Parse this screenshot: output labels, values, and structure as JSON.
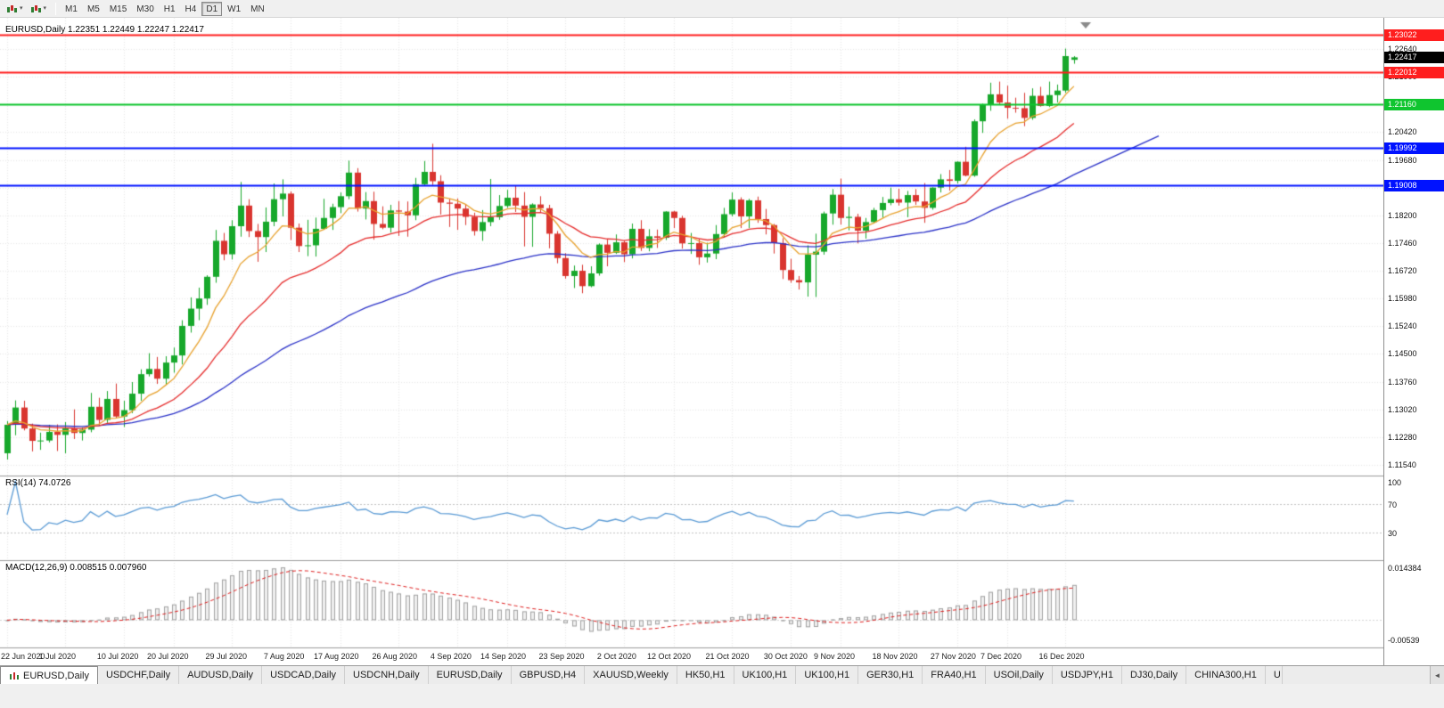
{
  "toolbar": {
    "icons": [
      {
        "name": "new-chart-button"
      },
      {
        "name": "chart-profiles-button"
      }
    ],
    "timeframes": [
      {
        "label": "M1",
        "active": false
      },
      {
        "label": "M5",
        "active": false
      },
      {
        "label": "M15",
        "active": false
      },
      {
        "label": "M30",
        "active": false
      },
      {
        "label": "H1",
        "active": false
      },
      {
        "label": "H4",
        "active": false
      },
      {
        "label": "D1",
        "active": true
      },
      {
        "label": "W1",
        "active": false
      },
      {
        "label": "MN",
        "active": false
      }
    ]
  },
  "chart": {
    "title": "EURUSD,Daily 1.22351 1.22449 1.22247 1.22417",
    "symbol": "EURUSD,Daily",
    "ohlc_display": {
      "open": "1.22351",
      "high": "1.22449",
      "low": "1.22247",
      "close": "1.22417"
    },
    "colors": {
      "bull": "#17a82b",
      "bear": "#d9352f",
      "ma_fast": "#e8a22e",
      "ma_mid": "#e62e2e",
      "ma_slow": "#2b32c8",
      "grid": "#e7e7e7",
      "separator": "#9b9b9b"
    },
    "current_price": {
      "label": "1.22417",
      "price": 1.22417,
      "bg": "#000000"
    },
    "hlines": [
      {
        "label": "1.23022",
        "price": 1.23022,
        "color": "#ff1e1e",
        "width": 2
      },
      {
        "label": "1.22012",
        "price": 1.22012,
        "color": "#ff1e1e",
        "width": 2
      },
      {
        "label": "1.21160",
        "price": 1.2116,
        "color": "#0fc52f",
        "width": 2
      },
      {
        "label": "1.19992",
        "price": 1.19992,
        "color": "#0012ff",
        "width": 2
      },
      {
        "label": "1.19008",
        "price": 1.19008,
        "color": "#0012ff",
        "width": 2
      }
    ],
    "trendline": {
      "color": "#2b32c8",
      "end_x": 1300,
      "end_price": 1.2032
    },
    "price_axis": {
      "labels": [
        "1.22640",
        "1.21900",
        "1.21160",
        "1.20420",
        "1.19680",
        "1.18940",
        "1.18200",
        "1.17460",
        "1.16720",
        "1.15980",
        "1.15240",
        "1.14500",
        "1.13760",
        "1.13020",
        "1.12280",
        "1.11540"
      ]
    },
    "x_ticks": [
      {
        "i": 0,
        "label": "22 Jun 2020"
      },
      {
        "i": 7,
        "label": "1 Jul 2020"
      },
      {
        "i": 14,
        "label": "10 Jul 2020"
      },
      {
        "i": 20,
        "label": "20 Jul 2020"
      },
      {
        "i": 27,
        "label": "29 Jul 2020"
      },
      {
        "i": 34,
        "label": "7 Aug 2020"
      },
      {
        "i": 40,
        "label": "17 Aug 2020"
      },
      {
        "i": 47,
        "label": "26 Aug 2020"
      },
      {
        "i": 54,
        "label": "4 Sep 2020"
      },
      {
        "i": 60,
        "label": "14 Sep 2020"
      },
      {
        "i": 67,
        "label": "23 Sep 2020"
      },
      {
        "i": 74,
        "label": "2 Oct 2020"
      },
      {
        "i": 80,
        "label": "12 Oct 2020"
      },
      {
        "i": 87,
        "label": "21 Oct 2020"
      },
      {
        "i": 94,
        "label": "30 Oct 2020"
      },
      {
        "i": 100,
        "label": "9 Nov 2020"
      },
      {
        "i": 107,
        "label": "18 Nov 2020"
      },
      {
        "i": 114,
        "label": "27 Nov 2020"
      },
      {
        "i": 120,
        "label": "7 Dec 2020"
      },
      {
        "i": 127,
        "label": "16 Dec 2020"
      }
    ],
    "moving_averages": [
      {
        "period": 55,
        "color": "#2b32c8"
      },
      {
        "period": 21,
        "color": "#e62e2e"
      },
      {
        "period": 8,
        "color": "#e8a22e"
      }
    ],
    "candles": [
      [
        1.1185,
        1.1271,
        1.1168,
        1.1261
      ],
      [
        1.1261,
        1.1326,
        1.1233,
        1.1307
      ],
      [
        1.1307,
        1.1325,
        1.1246,
        1.1251
      ],
      [
        1.1251,
        1.1264,
        1.119,
        1.1218
      ],
      [
        1.1218,
        1.124,
        1.1194,
        1.1219
      ],
      [
        1.1219,
        1.1261,
        1.1214,
        1.1242
      ],
      [
        1.1242,
        1.1262,
        1.1191,
        1.1234
      ],
      [
        1.1234,
        1.1268,
        1.1185,
        1.1251
      ],
      [
        1.1251,
        1.1302,
        1.1223,
        1.1239
      ],
      [
        1.1239,
        1.1254,
        1.1219,
        1.1248
      ],
      [
        1.1248,
        1.1346,
        1.1241,
        1.1309
      ],
      [
        1.1309,
        1.1333,
        1.1259,
        1.1274
      ],
      [
        1.1274,
        1.1351,
        1.1266,
        1.133
      ],
      [
        1.133,
        1.1371,
        1.1279,
        1.1283
      ],
      [
        1.1283,
        1.1325,
        1.1255,
        1.13
      ],
      [
        1.13,
        1.1375,
        1.1292,
        1.1344
      ],
      [
        1.1344,
        1.1409,
        1.1325,
        1.1396
      ],
      [
        1.1396,
        1.1452,
        1.139,
        1.141
      ],
      [
        1.141,
        1.1442,
        1.137,
        1.1384
      ],
      [
        1.1384,
        1.1444,
        1.1368,
        1.1427
      ],
      [
        1.1427,
        1.1467,
        1.14,
        1.1446
      ],
      [
        1.1446,
        1.154,
        1.1422,
        1.1525
      ],
      [
        1.1525,
        1.1601,
        1.1507,
        1.1571
      ],
      [
        1.1571,
        1.1627,
        1.154,
        1.1598
      ],
      [
        1.1598,
        1.166,
        1.1581,
        1.1656
      ],
      [
        1.1656,
        1.1781,
        1.164,
        1.1752
      ],
      [
        1.1752,
        1.1773,
        1.17,
        1.1716
      ],
      [
        1.1716,
        1.1807,
        1.1702,
        1.1791
      ],
      [
        1.1791,
        1.1909,
        1.1763,
        1.1846
      ],
      [
        1.1846,
        1.1863,
        1.1762,
        1.1778
      ],
      [
        1.1778,
        1.1797,
        1.1696,
        1.1762
      ],
      [
        1.1762,
        1.1841,
        1.1722,
        1.1803
      ],
      [
        1.1803,
        1.1905,
        1.1791,
        1.1863
      ],
      [
        1.1863,
        1.1916,
        1.1817,
        1.1878
      ],
      [
        1.1878,
        1.1884,
        1.1754,
        1.1787
      ],
      [
        1.1787,
        1.1798,
        1.1722,
        1.1738
      ],
      [
        1.1738,
        1.1808,
        1.1711,
        1.174
      ],
      [
        1.174,
        1.1814,
        1.171,
        1.1784
      ],
      [
        1.1784,
        1.1864,
        1.1782,
        1.1813
      ],
      [
        1.1813,
        1.1851,
        1.1781,
        1.1842
      ],
      [
        1.1842,
        1.1881,
        1.1826,
        1.1871
      ],
      [
        1.1871,
        1.1966,
        1.1863,
        1.1934
      ],
      [
        1.1934,
        1.1946,
        1.183,
        1.1838
      ],
      [
        1.1838,
        1.1882,
        1.1809,
        1.1858
      ],
      [
        1.1858,
        1.1883,
        1.1755,
        1.1797
      ],
      [
        1.1797,
        1.1844,
        1.1783,
        1.1787
      ],
      [
        1.1787,
        1.1848,
        1.1774,
        1.1833
      ],
      [
        1.1833,
        1.1858,
        1.1765,
        1.183
      ],
      [
        1.183,
        1.1857,
        1.1763,
        1.182
      ],
      [
        1.182,
        1.192,
        1.1807,
        1.1903
      ],
      [
        1.1903,
        1.1965,
        1.1898,
        1.1936
      ],
      [
        1.1936,
        1.2011,
        1.1901,
        1.1911
      ],
      [
        1.1911,
        1.1927,
        1.1822,
        1.1854
      ],
      [
        1.1854,
        1.1864,
        1.1789,
        1.1851
      ],
      [
        1.1851,
        1.1865,
        1.1781,
        1.1838
      ],
      [
        1.1838,
        1.1849,
        1.1794,
        1.1816
      ],
      [
        1.1816,
        1.1827,
        1.1766,
        1.1778
      ],
      [
        1.1778,
        1.1834,
        1.1752,
        1.1802
      ],
      [
        1.1802,
        1.1917,
        1.1791,
        1.1815
      ],
      [
        1.1815,
        1.1874,
        1.1808,
        1.1845
      ],
      [
        1.1845,
        1.1888,
        1.184,
        1.1867
      ],
      [
        1.1867,
        1.19,
        1.1829,
        1.1846
      ],
      [
        1.1846,
        1.1882,
        1.1737,
        1.1816
      ],
      [
        1.1816,
        1.1852,
        1.1736,
        1.1849
      ],
      [
        1.1849,
        1.1871,
        1.1827,
        1.1839
      ],
      [
        1.1839,
        1.1848,
        1.1732,
        1.1771
      ],
      [
        1.1771,
        1.1778,
        1.1692,
        1.1706
      ],
      [
        1.1706,
        1.1719,
        1.1651,
        1.1658
      ],
      [
        1.1658,
        1.1686,
        1.1626,
        1.1672
      ],
      [
        1.1672,
        1.1688,
        1.1612,
        1.1631
      ],
      [
        1.1631,
        1.1684,
        1.1628,
        1.1665
      ],
      [
        1.1665,
        1.1745,
        1.1659,
        1.1742
      ],
      [
        1.1742,
        1.1755,
        1.1684,
        1.172
      ],
      [
        1.172,
        1.1769,
        1.1717,
        1.1748
      ],
      [
        1.1748,
        1.1752,
        1.1695,
        1.1716
      ],
      [
        1.1716,
        1.1798,
        1.1705,
        1.1784
      ],
      [
        1.1784,
        1.1807,
        1.1725,
        1.1733
      ],
      [
        1.1733,
        1.1783,
        1.1724,
        1.1764
      ],
      [
        1.1764,
        1.1782,
        1.1733,
        1.176
      ],
      [
        1.176,
        1.1831,
        1.1754,
        1.183
      ],
      [
        1.183,
        1.1832,
        1.1786,
        1.1813
      ],
      [
        1.1813,
        1.1819,
        1.1731,
        1.1745
      ],
      [
        1.1745,
        1.1773,
        1.1717,
        1.1746
      ],
      [
        1.1746,
        1.1758,
        1.1688,
        1.1708
      ],
      [
        1.1708,
        1.1747,
        1.1694,
        1.1718
      ],
      [
        1.1718,
        1.1794,
        1.1703,
        1.177
      ],
      [
        1.177,
        1.184,
        1.1761,
        1.1823
      ],
      [
        1.1823,
        1.1881,
        1.1817,
        1.1862
      ],
      [
        1.1862,
        1.1868,
        1.1786,
        1.1817
      ],
      [
        1.1817,
        1.1864,
        1.1786,
        1.186
      ],
      [
        1.186,
        1.187,
        1.18,
        1.181
      ],
      [
        1.181,
        1.1837,
        1.1769,
        1.1794
      ],
      [
        1.1794,
        1.1797,
        1.1718,
        1.1746
      ],
      [
        1.1746,
        1.1759,
        1.165,
        1.1674
      ],
      [
        1.1674,
        1.1704,
        1.164,
        1.1647
      ],
      [
        1.1647,
        1.1658,
        1.1622,
        1.1641
      ],
      [
        1.1641,
        1.174,
        1.1603,
        1.1715
      ],
      [
        1.1715,
        1.1771,
        1.1602,
        1.1723
      ],
      [
        1.1723,
        1.183,
        1.1715,
        1.1825
      ],
      [
        1.1825,
        1.189,
        1.1795,
        1.1875
      ],
      [
        1.1875,
        1.1918,
        1.1795,
        1.1813
      ],
      [
        1.1813,
        1.1843,
        1.178,
        1.1816
      ],
      [
        1.1816,
        1.1824,
        1.1745,
        1.1779
      ],
      [
        1.1779,
        1.1813,
        1.1758,
        1.1802
      ],
      [
        1.1802,
        1.184,
        1.1799,
        1.1834
      ],
      [
        1.1834,
        1.1869,
        1.1814,
        1.1853
      ],
      [
        1.1853,
        1.1894,
        1.1847,
        1.1863
      ],
      [
        1.1863,
        1.1891,
        1.1846,
        1.1854
      ],
      [
        1.1854,
        1.1885,
        1.1815,
        1.1874
      ],
      [
        1.1874,
        1.189,
        1.1848,
        1.1857
      ],
      [
        1.1857,
        1.1906,
        1.18,
        1.184
      ],
      [
        1.184,
        1.1895,
        1.1835,
        1.1894
      ],
      [
        1.1894,
        1.193,
        1.1881,
        1.1916
      ],
      [
        1.1916,
        1.1941,
        1.1886,
        1.1912
      ],
      [
        1.1912,
        1.1964,
        1.1905,
        1.1963
      ],
      [
        1.1963,
        1.2003,
        1.1924,
        1.1926
      ],
      [
        1.1926,
        1.2076,
        1.1923,
        1.2071
      ],
      [
        1.2071,
        1.2118,
        1.204,
        1.2115
      ],
      [
        1.2115,
        1.2174,
        1.2099,
        1.2143
      ],
      [
        1.2143,
        1.2177,
        1.2115,
        1.2121
      ],
      [
        1.2121,
        1.2166,
        1.2078,
        1.2107
      ],
      [
        1.2107,
        1.2134,
        1.2094,
        1.2106
      ],
      [
        1.2106,
        1.2147,
        1.2058,
        1.208
      ],
      [
        1.208,
        1.2159,
        1.2075,
        1.2139
      ],
      [
        1.2139,
        1.2163,
        1.211,
        1.2112
      ],
      [
        1.2112,
        1.2177,
        1.2109,
        1.2141
      ],
      [
        1.2141,
        1.2169,
        1.2121,
        1.2153
      ],
      [
        1.2153,
        1.2265,
        1.2147,
        1.2245
      ],
      [
        1.22351,
        1.22449,
        1.22247,
        1.22417
      ]
    ]
  },
  "rsi": {
    "label": "RSI(14) 74.0726",
    "period": 14,
    "levels": [
      "100",
      "70",
      "30"
    ],
    "level_values": [
      100,
      70,
      30
    ],
    "color": "#5b9bd5"
  },
  "macd": {
    "label": "MACD(12,26,9) 0.008515 0.007960",
    "fast": 12,
    "slow": 26,
    "signal": 9,
    "axis_top": "0.014384",
    "axis_bottom": "-0.00539",
    "bar_fill": "#efefef",
    "bar_stroke": "#a3a3a3",
    "signal_color": "#e02020"
  },
  "tabs": {
    "items": [
      {
        "label": "EURUSD,Daily",
        "active": true
      },
      {
        "label": "USDCHF,Daily"
      },
      {
        "label": "AUDUSD,Daily"
      },
      {
        "label": "USDCAD,Daily"
      },
      {
        "label": "USDCNH,Daily"
      },
      {
        "label": "EURUSD,Daily"
      },
      {
        "label": "GBPUSD,H4"
      },
      {
        "label": "XAUUSD,Weekly"
      },
      {
        "label": "HK50,H1"
      },
      {
        "label": "UK100,H1"
      },
      {
        "label": "UK100,H1"
      },
      {
        "label": "GER30,H1"
      },
      {
        "label": "FRA40,H1"
      },
      {
        "label": "USOil,Daily"
      },
      {
        "label": "USDJPY,H1"
      },
      {
        "label": "DJ30,Daily"
      },
      {
        "label": "CHINA300,H1"
      },
      {
        "label": "U",
        "partial": true
      }
    ],
    "scroll_left": "◄"
  }
}
